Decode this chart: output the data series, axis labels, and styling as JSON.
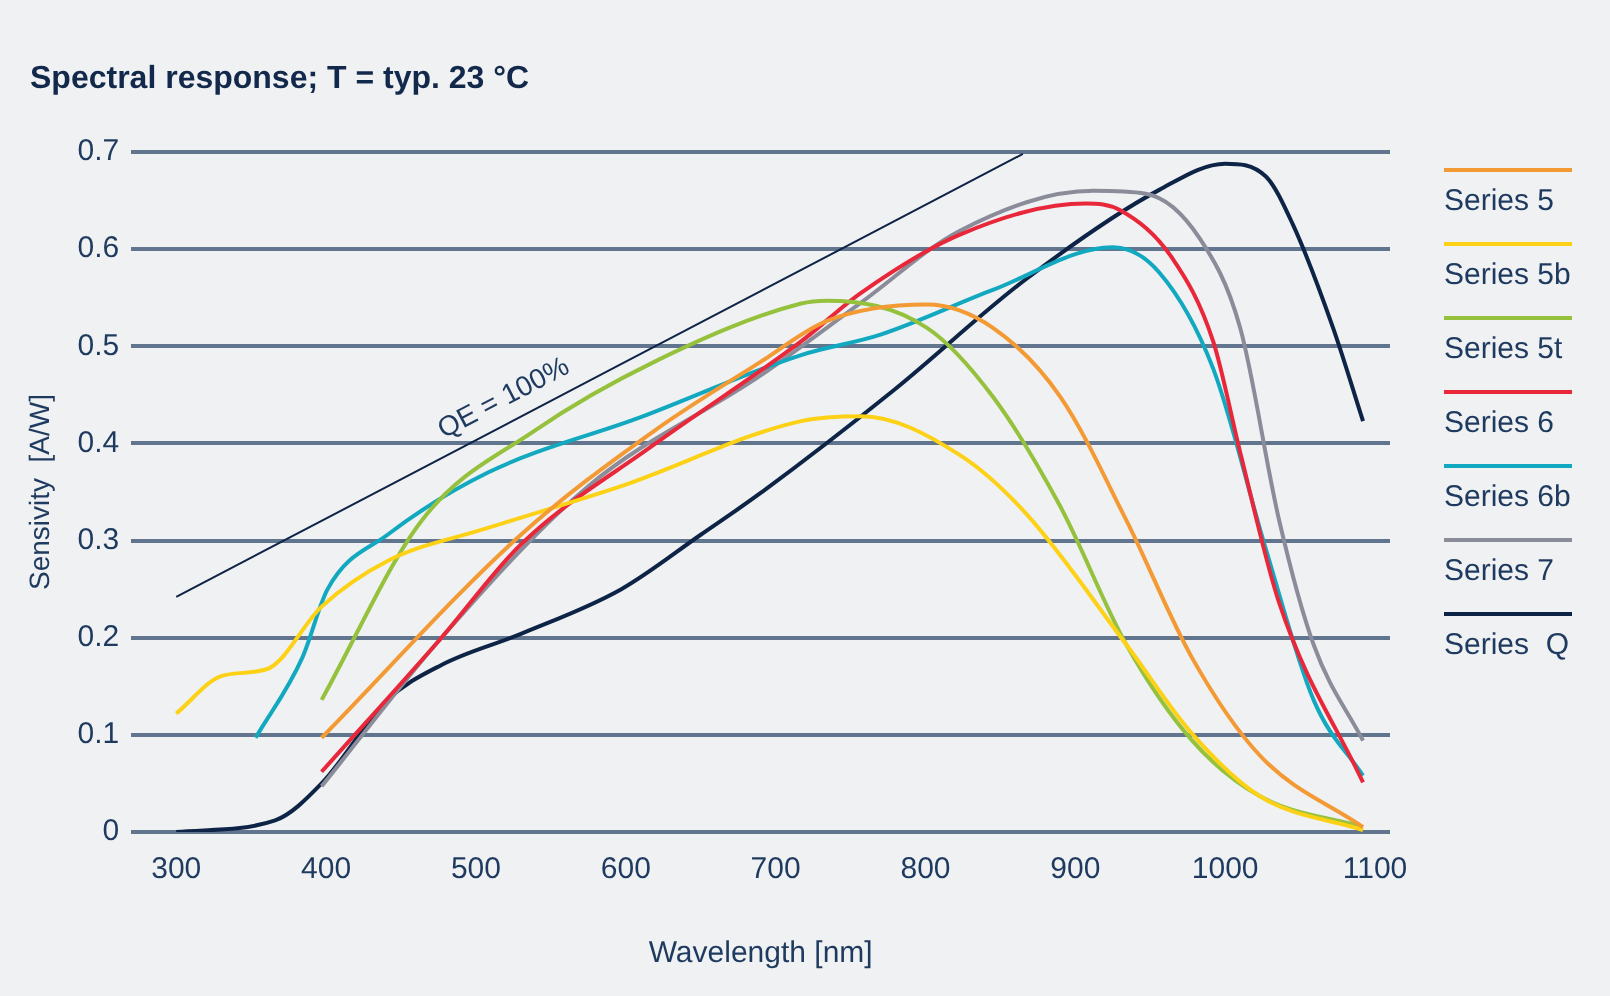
{
  "chart_data": {
    "type": "line",
    "title": "Spectral response; T = typ. 23 °C",
    "xlabel": "Wavelength [nm]",
    "ylabel": "Sensivity  [A/W]",
    "xlim": [
      270,
      1110
    ],
    "ylim": [
      0,
      0.7
    ],
    "xticks": [
      300,
      400,
      500,
      600,
      700,
      800,
      900,
      1000,
      1100
    ],
    "yticks": [
      0,
      0.1,
      0.2,
      0.3,
      0.4,
      0.5,
      0.6,
      0.7
    ],
    "grid": "y",
    "legend": "right",
    "marker": "none",
    "series": [
      {
        "name": "Series 5",
        "color": "#f39a34",
        "x": [
          397,
          530,
          619,
          690,
          734,
          801,
          845,
          890,
          934,
          978,
          1023,
          1092
        ],
        "values": [
          0.097,
          0.306,
          0.413,
          0.484,
          0.526,
          0.543,
          0.519,
          0.448,
          0.321,
          0.179,
          0.079,
          0.005
        ]
      },
      {
        "name": "Series 5b",
        "color": "#fcd116",
        "x": [
          300,
          331,
          361,
          397,
          441,
          508,
          597,
          717,
          757,
          823,
          867,
          934,
          978,
          1023,
          1092
        ],
        "values": [
          0.122,
          0.161,
          0.168,
          0.232,
          0.279,
          0.313,
          0.356,
          0.423,
          0.428,
          0.388,
          0.328,
          0.193,
          0.101,
          0.037,
          0.002
        ]
      },
      {
        "name": "Series 5t",
        "color": "#95c13d",
        "x": [
          397,
          464,
          539,
          619,
          717,
          734,
          801,
          845,
          890,
          934,
          978,
          1023,
          1092
        ],
        "values": [
          0.136,
          0.321,
          0.413,
          0.484,
          0.544,
          0.547,
          0.519,
          0.448,
          0.335,
          0.193,
          0.094,
          0.037,
          0.005
        ]
      },
      {
        "name": "Series 6",
        "color": "#e8283a",
        "x": [
          397,
          477,
          530,
          619,
          717,
          757,
          823,
          907,
          930,
          965,
          992,
          1010,
          1036,
          1092
        ],
        "values": [
          0.062,
          0.2,
          0.296,
          0.399,
          0.505,
          0.555,
          0.615,
          0.647,
          0.64,
          0.59,
          0.505,
          0.391,
          0.236,
          0.051
        ]
      },
      {
        "name": "Series 6b",
        "color": "#12a9c0",
        "x": [
          353,
          384,
          401,
          441,
          508,
          610,
          717,
          770,
          845,
          925,
          956,
          992,
          1027,
          1059,
          1092
        ],
        "values": [
          0.097,
          0.179,
          0.25,
          0.306,
          0.37,
          0.427,
          0.491,
          0.512,
          0.558,
          0.602,
          0.576,
          0.477,
          0.292,
          0.136,
          0.058
        ]
      },
      {
        "name": "Series 7",
        "color": "#8a8d99",
        "x": [
          397,
          477,
          575,
          690,
          757,
          823,
          912,
          947,
          983,
          1010,
          1036,
          1059,
          1092
        ],
        "values": [
          0.047,
          0.2,
          0.356,
          0.47,
          0.545,
          0.619,
          0.66,
          0.657,
          0.611,
          0.519,
          0.321,
          0.193,
          0.094
        ]
      },
      {
        "name": "Series  Q",
        "color": "#0d2447",
        "x": [
          300,
          366,
          397,
          441,
          477,
          530,
          597,
          650,
          690,
          779,
          867,
          956,
          1000,
          1027,
          1045,
          1072,
          1092
        ],
        "values": [
          0,
          0.012,
          0.05,
          0.136,
          0.172,
          0.204,
          0.25,
          0.306,
          0.349,
          0.455,
          0.569,
          0.661,
          0.688,
          0.675,
          0.626,
          0.519,
          0.423
        ]
      },
      {
        "color": "#0d2447",
        "x": [
          300,
          865
        ],
        "values": [
          0.242,
          0.698
        ]
      }
    ],
    "annotations": [
      "QE = 100%"
    ]
  }
}
